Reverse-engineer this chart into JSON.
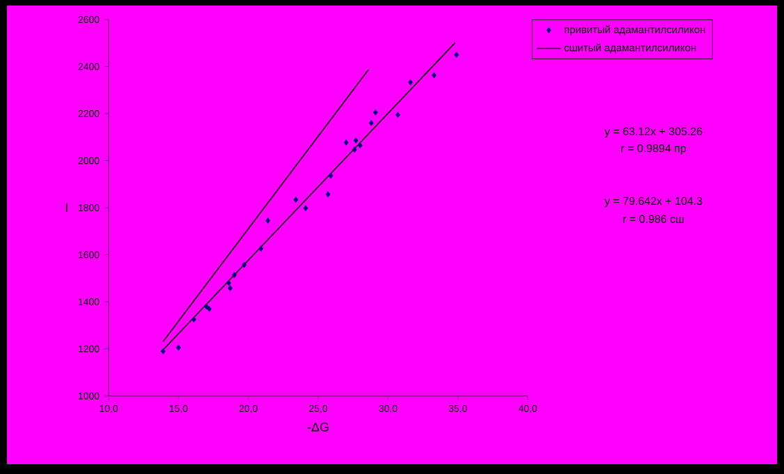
{
  "chart_data": {
    "type": "scatter",
    "xlabel": "-ΔG",
    "ylabel": "I",
    "xlim": [
      10,
      40
    ],
    "xticks": [
      {
        "value": 10,
        "label": "10,0"
      },
      {
        "value": 15,
        "label": "15,0"
      },
      {
        "value": 20,
        "label": "20,0"
      },
      {
        "value": 25,
        "label": "25,0"
      },
      {
        "value": 30,
        "label": "30,0"
      },
      {
        "value": 35,
        "label": "35,0"
      },
      {
        "value": 40,
        "label": "40,0"
      }
    ],
    "ylim": [
      1000,
      2600
    ],
    "yticks": [
      1000,
      1200,
      1400,
      1600,
      1800,
      2000,
      2200,
      2400,
      2600
    ],
    "legend": "top right",
    "grid": false,
    "series": [
      {
        "name": "привитый адамантилсиликон",
        "color": "#000080",
        "marker": "diamond",
        "x": [
          13.9,
          15.0,
          16.1,
          17.0,
          17.2,
          18.6,
          18.7,
          19.0,
          19.7,
          20.9,
          21.4,
          23.4,
          24.1,
          25.7,
          25.9,
          27.0,
          27.7,
          27.6,
          28.0,
          28.8,
          29.1,
          30.7,
          31.6,
          33.3,
          34.9
        ],
        "values": [
          1190,
          1205,
          1325,
          1380,
          1370,
          1480,
          1458,
          1514,
          1557,
          1626,
          1745,
          1834,
          1798,
          1857,
          1936,
          2077,
          2086,
          2047,
          2065,
          2160,
          2205,
          2195,
          2333,
          2363,
          2450
        ]
      },
      {
        "name": "сшитый адамантилсиликон",
        "type": "line",
        "color": "#000000",
        "x": [
          13.9,
          28.6
        ],
        "values": [
          1231,
          2387
        ]
      },
      {
        "type": "line",
        "color": "#000000",
        "x": [
          13.9,
          34.8
        ],
        "values": [
          1196,
          2501
        ]
      }
    ],
    "annotations": [
      "y = 63.12x + 305.26",
      "r = 0.9894  пр",
      "y = 79.642x + 104.3",
      "r = 0.986  сш"
    ]
  }
}
